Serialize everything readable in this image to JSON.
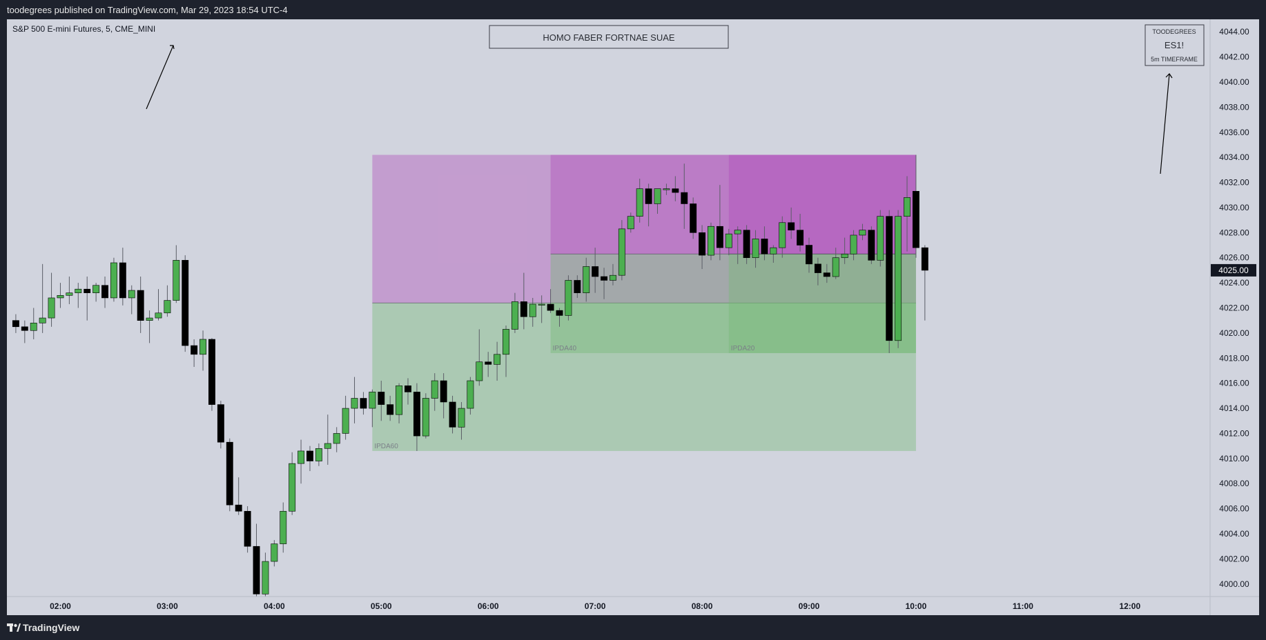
{
  "header": {
    "publish_line": "toodegrees published on TradingView.com, Mar 29, 2023 18:54 UTC-4"
  },
  "footer": {
    "brand": "TradingView",
    "logo_icon": "tradingview-logo-icon"
  },
  "chart": {
    "symbol_line": "S&P 500 E-mini Futures, 5, CME_MINI",
    "banner": "HOMO FABER FORTNAE SUAE",
    "badge": {
      "top": "TOODEGREES",
      "middle": "ES1!",
      "bottom": "5m TIMEFRAME"
    },
    "current_price": "4025.00"
  },
  "chart_data": {
    "type": "candlestick",
    "title": "S&P 500 E-mini Futures, 5, CME_MINI",
    "timeframe_minutes": 5,
    "ylim": [
      3999,
      4045
    ],
    "y_ticks": [
      4000,
      4002,
      4004,
      4006,
      4008,
      4010,
      4012,
      4014,
      4016,
      4018,
      4020,
      4022,
      4024,
      4026,
      4028,
      4030,
      4032,
      4034,
      4036,
      4038,
      4040,
      4042,
      4044
    ],
    "x_ticks": [
      "02:00",
      "03:00",
      "04:00",
      "05:00",
      "06:00",
      "07:00",
      "08:00",
      "09:00",
      "10:00",
      "11:00",
      "12:00"
    ],
    "xlim": [
      "01:30",
      "12:45"
    ],
    "grid": false,
    "last_price": 4025.0,
    "colors": {
      "up": "#4caf50",
      "down": "#000000",
      "wick": "#5a5d66",
      "zone_top": "#b04ab8",
      "zone_bottom": "#72b872"
    },
    "zones": [
      {
        "label": "IPDA60",
        "start": "04:55",
        "end": "09:55",
        "high": 4034.2,
        "low": 4010.6,
        "equilibrium": 4022.4
      },
      {
        "label": "IPDA40",
        "start": "06:35",
        "end": "09:55",
        "high": 4034.2,
        "low": 4018.4,
        "equilibrium": 4026.3
      },
      {
        "label": "IPDA20",
        "start": "08:15",
        "end": "09:55",
        "high": 4034.2,
        "low": 4018.4,
        "equilibrium": 4026.3
      }
    ],
    "candles": [
      {
        "t": "01:35",
        "o": 4021.0,
        "h": 4021.5,
        "l": 4020.0,
        "c": 4020.5
      },
      {
        "t": "01:40",
        "o": 4020.5,
        "h": 4021.0,
        "l": 4019.2,
        "c": 4020.2
      },
      {
        "t": "01:45",
        "o": 4020.2,
        "h": 4022.0,
        "l": 4019.5,
        "c": 4020.8
      },
      {
        "t": "01:50",
        "o": 4020.8,
        "h": 4025.5,
        "l": 4020.0,
        "c": 4021.2
      },
      {
        "t": "01:55",
        "o": 4021.2,
        "h": 4024.8,
        "l": 4020.5,
        "c": 4022.8
      },
      {
        "t": "02:00",
        "o": 4022.8,
        "h": 4024.0,
        "l": 4022.0,
        "c": 4023.0
      },
      {
        "t": "02:05",
        "o": 4023.0,
        "h": 4024.5,
        "l": 4022.3,
        "c": 4023.2
      },
      {
        "t": "02:10",
        "o": 4023.2,
        "h": 4024.0,
        "l": 4022.0,
        "c": 4023.5
      },
      {
        "t": "02:15",
        "o": 4023.5,
        "h": 4024.5,
        "l": 4021.0,
        "c": 4023.2
      },
      {
        "t": "02:20",
        "o": 4023.2,
        "h": 4024.0,
        "l": 4022.5,
        "c": 4023.8
      },
      {
        "t": "02:25",
        "o": 4023.8,
        "h": 4024.5,
        "l": 4022.0,
        "c": 4022.8
      },
      {
        "t": "02:30",
        "o": 4022.8,
        "h": 4026.0,
        "l": 4022.5,
        "c": 4025.6
      },
      {
        "t": "02:35",
        "o": 4025.6,
        "h": 4026.8,
        "l": 4022.2,
        "c": 4022.8
      },
      {
        "t": "02:40",
        "o": 4022.8,
        "h": 4023.8,
        "l": 4021.5,
        "c": 4023.4
      },
      {
        "t": "02:45",
        "o": 4023.4,
        "h": 4024.5,
        "l": 4020.0,
        "c": 4021.0
      },
      {
        "t": "02:50",
        "o": 4021.0,
        "h": 4021.8,
        "l": 4019.2,
        "c": 4021.2
      },
      {
        "t": "02:55",
        "o": 4021.2,
        "h": 4023.5,
        "l": 4021.0,
        "c": 4021.6
      },
      {
        "t": "03:00",
        "o": 4021.6,
        "h": 4023.8,
        "l": 4021.3,
        "c": 4022.6
      },
      {
        "t": "03:05",
        "o": 4022.6,
        "h": 4027.0,
        "l": 4022.4,
        "c": 4025.8
      },
      {
        "t": "03:10",
        "o": 4025.8,
        "h": 4026.2,
        "l": 4018.5,
        "c": 4019.0
      },
      {
        "t": "03:15",
        "o": 4019.0,
        "h": 4019.5,
        "l": 4017.3,
        "c": 4018.3
      },
      {
        "t": "03:20",
        "o": 4018.3,
        "h": 4020.2,
        "l": 4017.0,
        "c": 4019.5
      },
      {
        "t": "03:25",
        "o": 4019.5,
        "h": 4019.6,
        "l": 4013.8,
        "c": 4014.3
      },
      {
        "t": "03:30",
        "o": 4014.3,
        "h": 4014.6,
        "l": 4010.8,
        "c": 4011.3
      },
      {
        "t": "03:35",
        "o": 4011.3,
        "h": 4011.6,
        "l": 4005.8,
        "c": 4006.3
      },
      {
        "t": "03:40",
        "o": 4006.3,
        "h": 4008.5,
        "l": 4005.5,
        "c": 4005.8
      },
      {
        "t": "03:45",
        "o": 4005.8,
        "h": 4006.2,
        "l": 4002.5,
        "c": 4003.0
      },
      {
        "t": "03:50",
        "o": 4003.0,
        "h": 4004.8,
        "l": 3999.0,
        "c": 3999.2
      },
      {
        "t": "03:55",
        "o": 3999.2,
        "h": 4002.5,
        "l": 3999.0,
        "c": 4001.8
      },
      {
        "t": "04:00",
        "o": 4001.8,
        "h": 4003.5,
        "l": 4001.4,
        "c": 4003.2
      },
      {
        "t": "04:05",
        "o": 4003.2,
        "h": 4006.5,
        "l": 4002.5,
        "c": 4005.8
      },
      {
        "t": "04:10",
        "o": 4005.8,
        "h": 4010.5,
        "l": 4005.5,
        "c": 4009.6
      },
      {
        "t": "04:15",
        "o": 4009.6,
        "h": 4011.5,
        "l": 4008.0,
        "c": 4010.6
      },
      {
        "t": "04:20",
        "o": 4010.6,
        "h": 4011.0,
        "l": 4009.0,
        "c": 4009.8
      },
      {
        "t": "04:25",
        "o": 4009.8,
        "h": 4011.2,
        "l": 4009.4,
        "c": 4010.8
      },
      {
        "t": "04:30",
        "o": 4010.8,
        "h": 4013.5,
        "l": 4009.5,
        "c": 4011.2
      },
      {
        "t": "04:35",
        "o": 4011.2,
        "h": 4012.5,
        "l": 4010.5,
        "c": 4012.0
      },
      {
        "t": "04:40",
        "o": 4012.0,
        "h": 4015.0,
        "l": 4011.5,
        "c": 4014.0
      },
      {
        "t": "04:45",
        "o": 4014.0,
        "h": 4016.5,
        "l": 4012.8,
        "c": 4014.8
      },
      {
        "t": "04:50",
        "o": 4014.8,
        "h": 4015.3,
        "l": 4013.5,
        "c": 4014.0
      },
      {
        "t": "04:55",
        "o": 4014.0,
        "h": 4015.5,
        "l": 4012.5,
        "c": 4015.3
      },
      {
        "t": "05:00",
        "o": 4015.3,
        "h": 4016.2,
        "l": 4013.0,
        "c": 4014.3
      },
      {
        "t": "05:05",
        "o": 4014.3,
        "h": 4015.0,
        "l": 4013.0,
        "c": 4013.5
      },
      {
        "t": "05:10",
        "o": 4013.5,
        "h": 4016.0,
        "l": 4012.8,
        "c": 4015.8
      },
      {
        "t": "05:15",
        "o": 4015.8,
        "h": 4016.4,
        "l": 4014.3,
        "c": 4015.3
      },
      {
        "t": "05:20",
        "o": 4015.3,
        "h": 4016.0,
        "l": 4010.6,
        "c": 4011.8
      },
      {
        "t": "05:25",
        "o": 4011.8,
        "h": 4015.2,
        "l": 4011.6,
        "c": 4014.8
      },
      {
        "t": "05:30",
        "o": 4014.8,
        "h": 4016.8,
        "l": 4013.8,
        "c": 4016.2
      },
      {
        "t": "05:35",
        "o": 4016.2,
        "h": 4016.8,
        "l": 4013.2,
        "c": 4014.5
      },
      {
        "t": "05:40",
        "o": 4014.5,
        "h": 4015.0,
        "l": 4012.0,
        "c": 4012.5
      },
      {
        "t": "05:45",
        "o": 4012.5,
        "h": 4014.5,
        "l": 4011.5,
        "c": 4014.0
      },
      {
        "t": "05:50",
        "o": 4014.0,
        "h": 4016.5,
        "l": 4013.5,
        "c": 4016.2
      },
      {
        "t": "05:55",
        "o": 4016.2,
        "h": 4020.3,
        "l": 4015.8,
        "c": 4017.7
      },
      {
        "t": "06:00",
        "o": 4017.7,
        "h": 4018.5,
        "l": 4016.5,
        "c": 4017.5
      },
      {
        "t": "06:05",
        "o": 4017.5,
        "h": 4019.3,
        "l": 4016.2,
        "c": 4018.3
      },
      {
        "t": "06:10",
        "o": 4018.3,
        "h": 4020.6,
        "l": 4016.5,
        "c": 4020.3
      },
      {
        "t": "06:15",
        "o": 4020.3,
        "h": 4023.2,
        "l": 4020.0,
        "c": 4022.5
      },
      {
        "t": "06:20",
        "o": 4022.5,
        "h": 4024.8,
        "l": 4020.3,
        "c": 4021.3
      },
      {
        "t": "06:25",
        "o": 4021.3,
        "h": 4022.8,
        "l": 4020.5,
        "c": 4022.3
      },
      {
        "t": "06:30",
        "o": 4022.3,
        "h": 4023.0,
        "l": 4020.8,
        "c": 4022.3
      },
      {
        "t": "06:35",
        "o": 4022.3,
        "h": 4023.5,
        "l": 4021.6,
        "c": 4021.8
      },
      {
        "t": "06:40",
        "o": 4021.8,
        "h": 4022.0,
        "l": 4020.5,
        "c": 4021.4
      },
      {
        "t": "06:45",
        "o": 4021.4,
        "h": 4024.6,
        "l": 4021.0,
        "c": 4024.2
      },
      {
        "t": "06:50",
        "o": 4024.2,
        "h": 4024.6,
        "l": 4022.8,
        "c": 4023.2
      },
      {
        "t": "06:55",
        "o": 4023.2,
        "h": 4026.0,
        "l": 4022.5,
        "c": 4025.3
      },
      {
        "t": "07:00",
        "o": 4025.3,
        "h": 4026.8,
        "l": 4023.2,
        "c": 4024.5
      },
      {
        "t": "07:05",
        "o": 4024.5,
        "h": 4025.2,
        "l": 4022.7,
        "c": 4024.2
      },
      {
        "t": "07:10",
        "o": 4024.2,
        "h": 4025.5,
        "l": 4023.8,
        "c": 4024.6
      },
      {
        "t": "07:15",
        "o": 4024.6,
        "h": 4029.0,
        "l": 4024.2,
        "c": 4028.3
      },
      {
        "t": "07:20",
        "o": 4028.3,
        "h": 4029.6,
        "l": 4028.0,
        "c": 4029.3
      },
      {
        "t": "07:25",
        "o": 4029.3,
        "h": 4032.3,
        "l": 4028.8,
        "c": 4031.5
      },
      {
        "t": "07:30",
        "o": 4031.5,
        "h": 4031.9,
        "l": 4028.5,
        "c": 4030.3
      },
      {
        "t": "07:35",
        "o": 4030.3,
        "h": 4031.5,
        "l": 4029.5,
        "c": 4031.5
      },
      {
        "t": "07:40",
        "o": 4031.5,
        "h": 4031.9,
        "l": 4031.0,
        "c": 4031.5
      },
      {
        "t": "07:45",
        "o": 4031.5,
        "h": 4032.5,
        "l": 4030.5,
        "c": 4031.2
      },
      {
        "t": "07:50",
        "o": 4031.2,
        "h": 4033.5,
        "l": 4028.3,
        "c": 4030.3
      },
      {
        "t": "07:55",
        "o": 4030.3,
        "h": 4030.8,
        "l": 4027.5,
        "c": 4028.0
      },
      {
        "t": "08:00",
        "o": 4028.0,
        "h": 4028.6,
        "l": 4025.1,
        "c": 4026.2
      },
      {
        "t": "08:05",
        "o": 4026.2,
        "h": 4028.8,
        "l": 4025.8,
        "c": 4028.5
      },
      {
        "t": "08:10",
        "o": 4028.5,
        "h": 4031.8,
        "l": 4025.8,
        "c": 4026.8
      },
      {
        "t": "08:15",
        "o": 4026.8,
        "h": 4028.3,
        "l": 4026.2,
        "c": 4027.9
      },
      {
        "t": "08:20",
        "o": 4027.9,
        "h": 4028.5,
        "l": 4025.5,
        "c": 4028.2
      },
      {
        "t": "08:25",
        "o": 4028.2,
        "h": 4028.6,
        "l": 4025.5,
        "c": 4026.0
      },
      {
        "t": "08:30",
        "o": 4026.0,
        "h": 4028.2,
        "l": 4025.2,
        "c": 4027.5
      },
      {
        "t": "08:35",
        "o": 4027.5,
        "h": 4028.5,
        "l": 4025.8,
        "c": 4026.3
      },
      {
        "t": "08:40",
        "o": 4026.3,
        "h": 4027.0,
        "l": 4025.6,
        "c": 4026.8
      },
      {
        "t": "08:45",
        "o": 4026.8,
        "h": 4029.3,
        "l": 4026.0,
        "c": 4028.8
      },
      {
        "t": "08:50",
        "o": 4028.8,
        "h": 4030.0,
        "l": 4027.5,
        "c": 4028.2
      },
      {
        "t": "08:55",
        "o": 4028.2,
        "h": 4029.5,
        "l": 4026.5,
        "c": 4027.0
      },
      {
        "t": "09:00",
        "o": 4027.0,
        "h": 4027.6,
        "l": 4024.8,
        "c": 4025.5
      },
      {
        "t": "09:05",
        "o": 4025.5,
        "h": 4026.0,
        "l": 4023.8,
        "c": 4024.8
      },
      {
        "t": "09:10",
        "o": 4024.8,
        "h": 4025.5,
        "l": 4024.0,
        "c": 4024.5
      },
      {
        "t": "09:15",
        "o": 4024.5,
        "h": 4026.8,
        "l": 4024.3,
        "c": 4026.0
      },
      {
        "t": "09:20",
        "o": 4026.0,
        "h": 4027.6,
        "l": 4025.5,
        "c": 4026.3
      },
      {
        "t": "09:25",
        "o": 4026.3,
        "h": 4028.2,
        "l": 4025.8,
        "c": 4027.8
      },
      {
        "t": "09:30",
        "o": 4027.8,
        "h": 4028.7,
        "l": 4027.4,
        "c": 4028.2
      },
      {
        "t": "09:35",
        "o": 4028.2,
        "h": 4028.5,
        "l": 4025.5,
        "c": 4025.8
      },
      {
        "t": "09:40",
        "o": 4025.8,
        "h": 4029.8,
        "l": 4025.3,
        "c": 4029.3
      },
      {
        "t": "09:45",
        "o": 4029.3,
        "h": 4029.8,
        "l": 4018.4,
        "c": 4019.4
      },
      {
        "t": "09:50",
        "o": 4019.4,
        "h": 4029.8,
        "l": 4018.8,
        "c": 4029.3
      },
      {
        "t": "09:55",
        "o": 4029.3,
        "h": 4032.5,
        "l": 4026.5,
        "c": 4030.8
      },
      {
        "t": "10:00",
        "o": 4031.3,
        "h": 4034.2,
        "l": 4026.0,
        "c": 4026.8
      },
      {
        "t": "10:05",
        "o": 4026.8,
        "h": 4027.0,
        "l": 4021.0,
        "c": 4025.0
      }
    ]
  }
}
